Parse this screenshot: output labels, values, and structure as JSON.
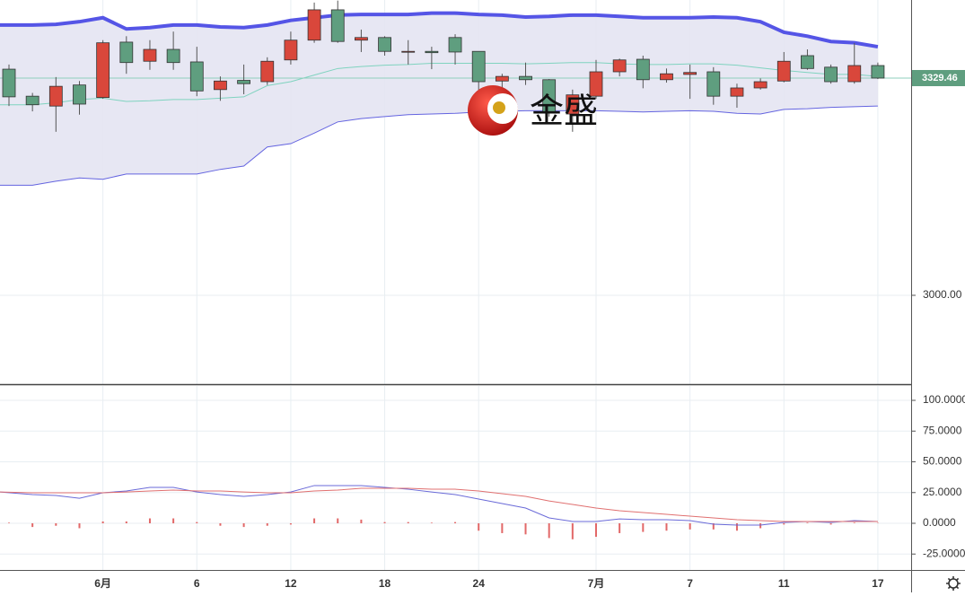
{
  "watermark": "金盛",
  "chart_data": [
    {
      "type": "candlestick",
      "ylim": [
        2865.2,
        3447.9
      ],
      "yticks": [
        {
          "value": 3000,
          "label": "3000.00"
        }
      ],
      "grid": true,
      "up_color": "#d9473b",
      "down_color": "#5f9e7f",
      "band_fill": "#e4e4f2",
      "last_price": 3329.46,
      "last_price_color": "#5f9e7f",
      "open": [
        3343,
        3302,
        3287,
        3319,
        3300,
        3384,
        3355,
        3373,
        3354,
        3312,
        3326,
        3324,
        3357,
        3387,
        3433,
        3387,
        3391,
        3369,
        3370,
        3391,
        3370,
        3325,
        3332,
        3327,
        3275,
        3302,
        3339,
        3358,
        3327,
        3335,
        3339,
        3302,
        3314.5,
        3325,
        3363.5,
        3346,
        3324,
        3348.5
      ],
      "high": [
        3350,
        3307,
        3331,
        3325,
        3387,
        3393,
        3387,
        3400,
        3377,
        3332,
        3350,
        3361,
        3400,
        3444,
        3447,
        3403,
        3393,
        3387,
        3377,
        3396,
        3370,
        3336,
        3353,
        3328,
        3312,
        3357,
        3359,
        3363.5,
        3344,
        3350,
        3346,
        3321,
        3329,
        3369,
        3373,
        3350,
        3382.6,
        3353
      ],
      "low": [
        3287,
        3279,
        3248,
        3274,
        3298,
        3336,
        3342,
        3342,
        3302,
        3295,
        3305,
        3319,
        3350,
        3383,
        3383,
        3369,
        3363.5,
        3350,
        3343,
        3350,
        3308,
        3305,
        3319,
        3271,
        3248,
        3298,
        3332,
        3314,
        3322.6,
        3298,
        3289,
        3284.5,
        3312,
        3323,
        3342,
        3321,
        3321,
        3328
      ],
      "close": [
        3301,
        3289,
        3317,
        3290,
        3383,
        3353,
        3373,
        3353,
        3310,
        3325,
        3321,
        3355,
        3387,
        3433,
        3385,
        3391,
        3370,
        3370,
        3368,
        3369,
        3324,
        3332,
        3327,
        3278,
        3304,
        3339,
        3357,
        3327,
        3336,
        3338,
        3302,
        3314.5,
        3324,
        3355,
        3344,
        3324,
        3348.5,
        3329.46
      ],
      "series": [
        {
          "color": "#5555e6",
          "values": [
            3410,
            3410,
            3411,
            3415,
            3421,
            3404,
            3406,
            3410,
            3410,
            3407,
            3406,
            3410,
            3417,
            3421,
            3425,
            3426,
            3426,
            3426,
            3428,
            3428,
            3426,
            3425,
            3422,
            3423,
            3425,
            3425,
            3423,
            3421,
            3421,
            3421,
            3422,
            3421,
            3415,
            3399,
            3393,
            3385,
            3383,
            3377
          ]
        },
        {
          "color": "#7fd3bf",
          "values": [
            3289,
            3289,
            3292,
            3297,
            3299,
            3294,
            3295,
            3297,
            3297,
            3299,
            3301,
            3318,
            3324,
            3334,
            3344,
            3347,
            3349,
            3350,
            3352,
            3352,
            3352,
            3352,
            3351,
            3352,
            3353,
            3353,
            3351,
            3350,
            3350,
            3351,
            3351,
            3349,
            3345,
            3341,
            3338,
            3335,
            3335,
            3332
          ]
        },
        {
          "color": "#6464e0",
          "values": [
            3167,
            3167,
            3173,
            3178,
            3176,
            3184,
            3184,
            3184,
            3184,
            3191,
            3196,
            3225,
            3230,
            3246,
            3263,
            3268,
            3271,
            3274,
            3275,
            3276,
            3278,
            3279,
            3280,
            3280,
            3280,
            3280,
            3279,
            3278,
            3279,
            3280,
            3279,
            3276,
            3275,
            3282,
            3283,
            3285,
            3286,
            3287
          ]
        }
      ]
    },
    {
      "type": "macd",
      "categories": [
        null,
        null,
        null,
        null,
        "6月",
        null,
        null,
        null,
        "6",
        null,
        null,
        null,
        "12",
        null,
        null,
        null,
        "18",
        null,
        null,
        null,
        "24",
        null,
        null,
        null,
        null,
        "7月",
        null,
        null,
        null,
        "7",
        null,
        null,
        null,
        "11",
        null,
        null,
        null,
        "17"
      ],
      "ylim": [
        -37.96,
        111.7
      ],
      "yticks": [
        {
          "value": 100,
          "label": "100.0000"
        },
        {
          "value": 75,
          "label": "75.0000"
        },
        {
          "value": 50,
          "label": "50.0000"
        },
        {
          "value": 25,
          "label": "25.0000"
        },
        {
          "value": 0,
          "label": "0.0000"
        },
        {
          "value": -25,
          "label": "-25.0000"
        }
      ],
      "grid": true,
      "histogram": {
        "color": "#e26868",
        "values": [
          0.5,
          -3,
          -2,
          -4,
          1.5,
          1.5,
          4,
          4,
          1,
          -2,
          -3,
          -2,
          -1,
          4,
          4,
          3,
          1,
          1,
          0.5,
          1,
          -6,
          -8,
          -9,
          -12,
          -13,
          -11,
          -8,
          -7,
          -6,
          -5,
          -5,
          -6,
          -4,
          -1,
          0.5,
          -1,
          0.5,
          0.3
        ]
      },
      "series": [
        {
          "color": "#6a6ad8",
          "values": [
            25.5,
            23.4,
            22.6,
            20.4,
            24.8,
            26.3,
            29.2,
            29.2,
            25.5,
            23.4,
            21.9,
            23.4,
            25.5,
            30.7,
            30.7,
            30.7,
            29.2,
            27.7,
            25.5,
            23.4,
            19.7,
            16.1,
            12.4,
            4.4,
            1.5,
            1.5,
            3.6,
            2.9,
            2.9,
            2.2,
            -0.7,
            -1.5,
            -1.5,
            0.7,
            1.5,
            0.7,
            2.2,
            1.5
          ]
        },
        {
          "color": "#e07070",
          "values": [
            25.5,
            24.8,
            24.8,
            24.8,
            24.8,
            25.5,
            26.3,
            27.0,
            26.3,
            26.3,
            25.5,
            24.8,
            24.8,
            26.3,
            27.0,
            28.5,
            28.5,
            28.5,
            27.7,
            27.7,
            26.3,
            24.1,
            21.9,
            18.2,
            15.3,
            12.4,
            10.2,
            8.8,
            7.3,
            5.8,
            4.4,
            2.9,
            2.2,
            1.5,
            1.5,
            1.5,
            1.5,
            1.5
          ]
        }
      ]
    }
  ]
}
